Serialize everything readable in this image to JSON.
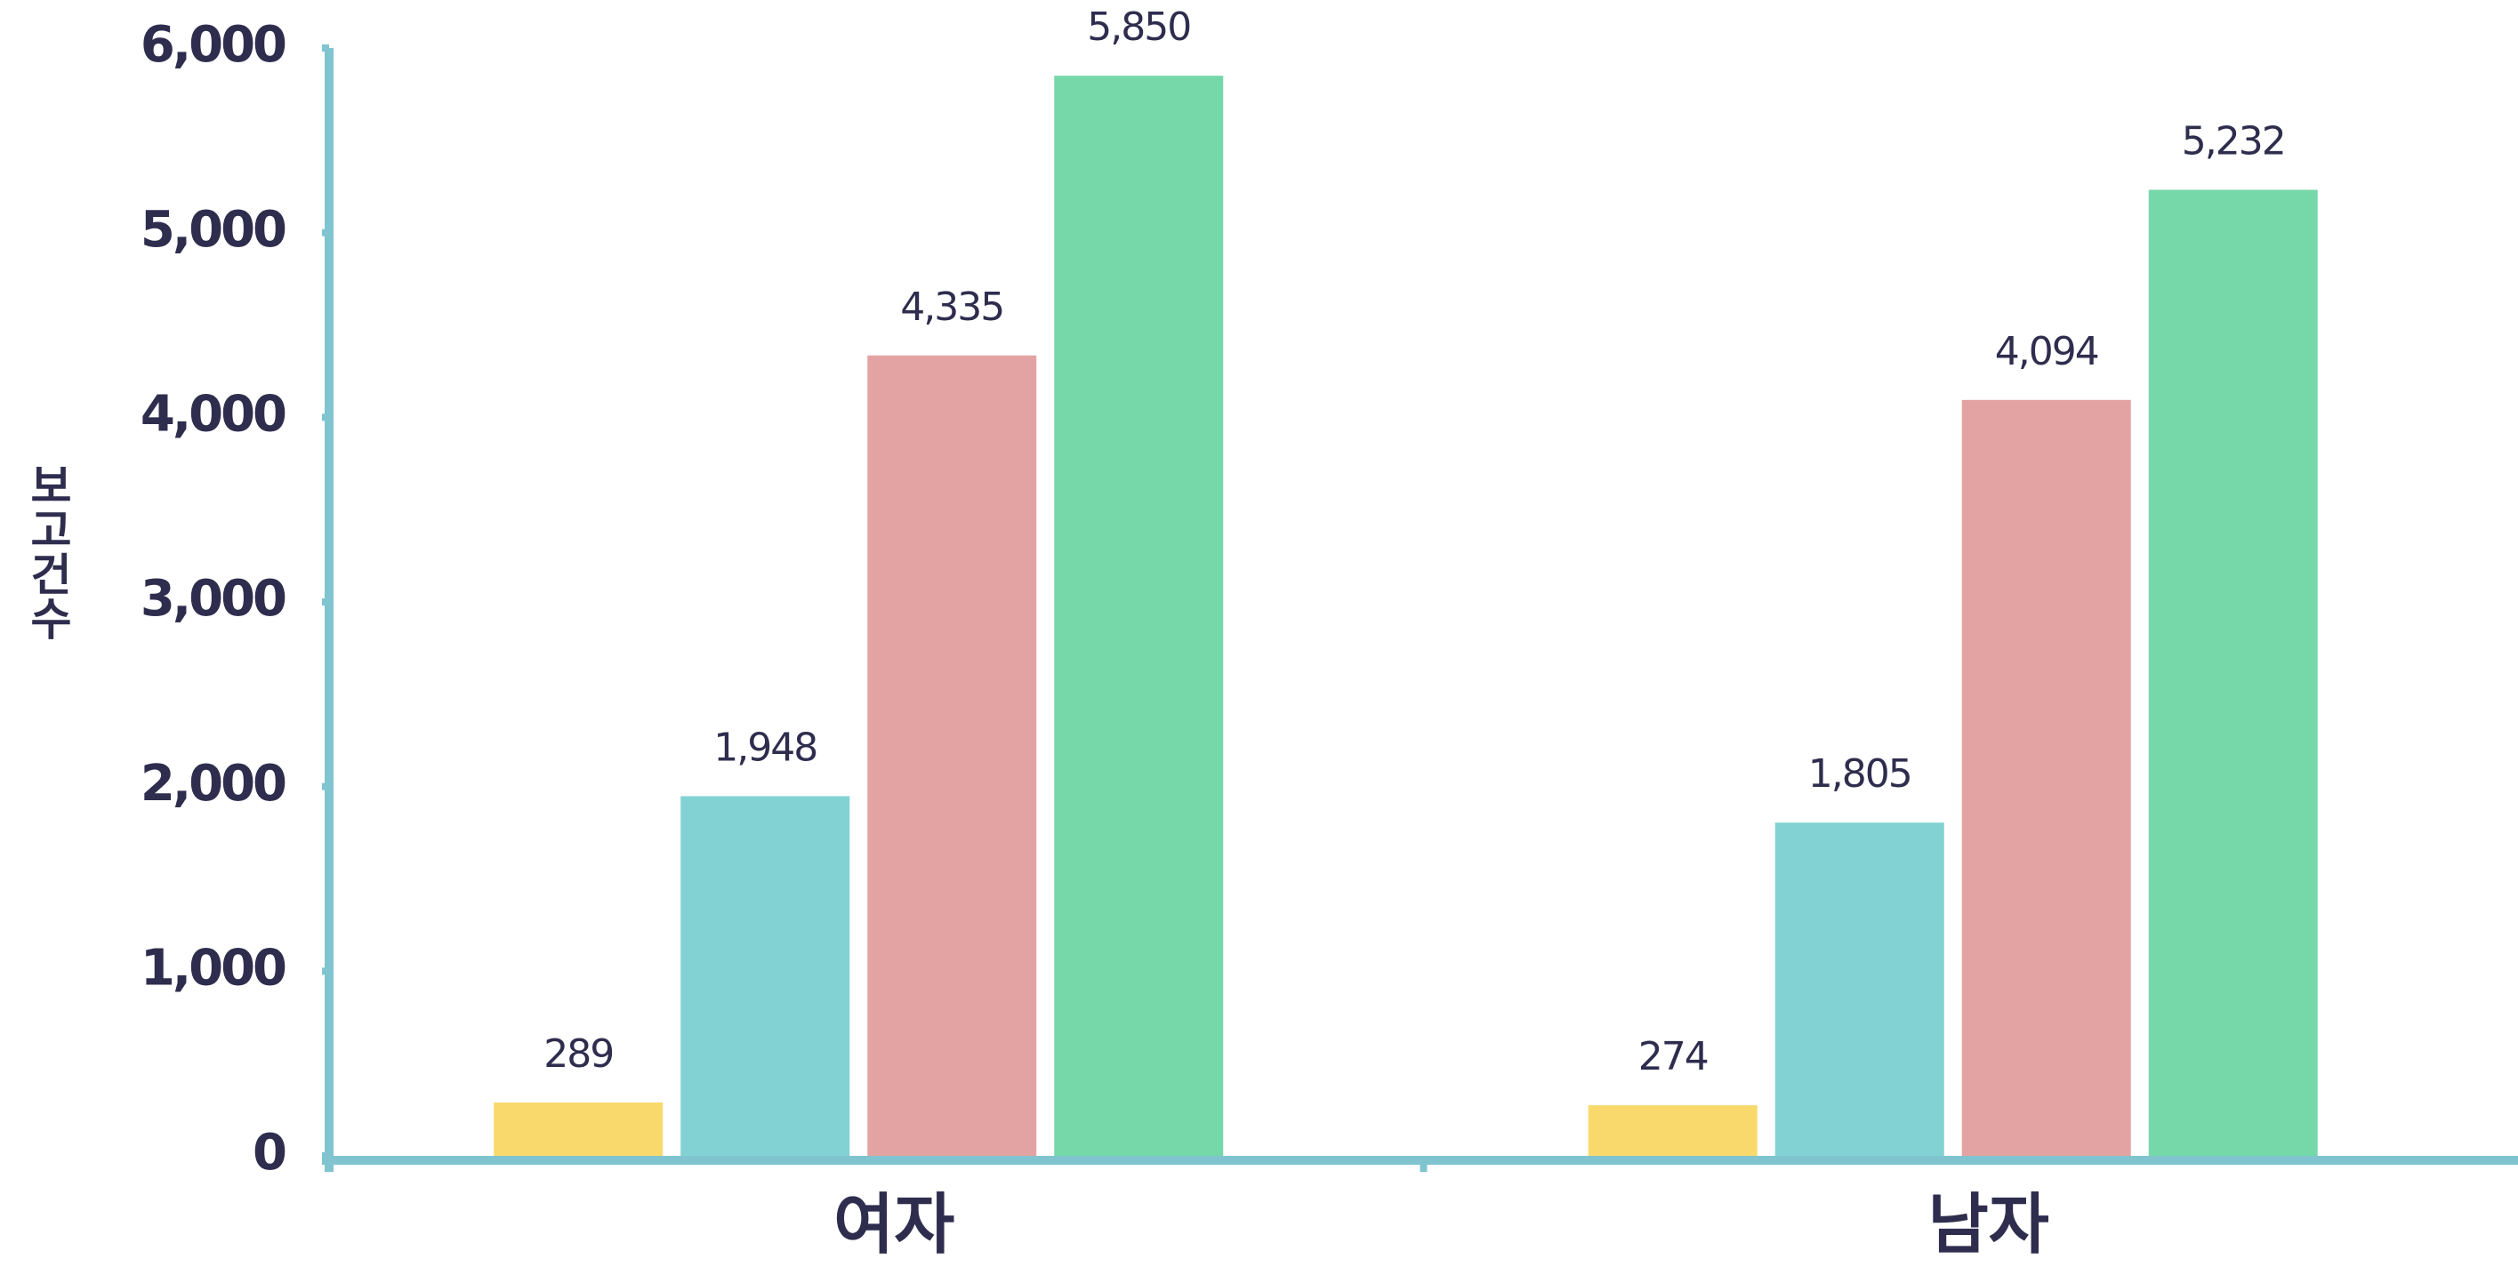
{
  "chart_data": {
    "type": "bar",
    "y_label": "보고건수",
    "categories": [
      "여자",
      "남자"
    ],
    "series": [
      {
        "color": "#f9d96c",
        "values": [
          289,
          274
        ],
        "value_labels": [
          "289",
          "274"
        ]
      },
      {
        "color": "#82d2d4",
        "values": [
          1948,
          1805
        ],
        "value_labels": [
          "1,948",
          "1,805"
        ]
      },
      {
        "color": "#e4a3a3",
        "values": [
          4335,
          4094
        ],
        "value_labels": [
          "4,335",
          "4,094"
        ]
      },
      {
        "color": "#76d8a8",
        "values": [
          5850,
          5232
        ],
        "value_labels": [
          "5,850",
          "5,232"
        ]
      }
    ],
    "ylim": [
      0,
      6000
    ],
    "yticks": [
      0,
      {
        "value": 1000,
        "label": "1,000"
      },
      {
        "value": 2000,
        "label": "2,000"
      },
      {
        "value": 3000,
        "label": "3,000"
      },
      {
        "value": 4000,
        "label": "4,000"
      },
      {
        "value": 5000,
        "label": "5,000"
      },
      {
        "value": 6000,
        "label": "6,000"
      }
    ],
    "axis_color": "#7fc4cf",
    "grid": false
  }
}
